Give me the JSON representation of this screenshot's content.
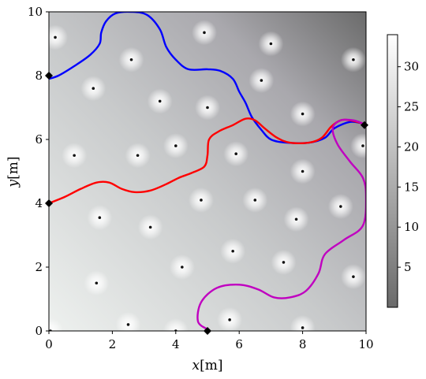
{
  "chart_data": {
    "type": "heatmap",
    "title": "",
    "xlabel": {
      "var": "x",
      "unit": "[m]"
    },
    "ylabel": {
      "var": "y",
      "unit": "[m]"
    },
    "xlim": [
      0,
      10
    ],
    "ylim": [
      0,
      10
    ],
    "x_ticks": [
      "0",
      "2",
      "4",
      "6",
      "8",
      "10"
    ],
    "y_ticks": [
      "0",
      "2",
      "4",
      "6",
      "8",
      "10"
    ],
    "grid": false,
    "colorbar": {
      "range": [
        0,
        34
      ],
      "ticks": [
        "5",
        "10",
        "15",
        "20",
        "25",
        "30"
      ],
      "colormap": "gray",
      "position": "right"
    },
    "obstacles": [
      [
        0.2,
        9.2
      ],
      [
        2.6,
        8.5
      ],
      [
        4.9,
        9.35
      ],
      [
        7.0,
        9.0
      ],
      [
        9.6,
        8.5
      ],
      [
        1.4,
        7.6
      ],
      [
        3.5,
        7.2
      ],
      [
        5.0,
        7.0
      ],
      [
        6.7,
        7.85
      ],
      [
        8.0,
        6.8
      ],
      [
        0.8,
        5.5
      ],
      [
        2.8,
        5.5
      ],
      [
        4.0,
        5.8
      ],
      [
        5.9,
        5.55
      ],
      [
        8.0,
        5.0
      ],
      [
        9.9,
        5.8
      ],
      [
        1.6,
        3.55
      ],
      [
        3.2,
        3.25
      ],
      [
        4.8,
        4.1
      ],
      [
        6.5,
        4.1
      ],
      [
        7.8,
        3.5
      ],
      [
        9.2,
        3.9
      ],
      [
        1.5,
        1.5
      ],
      [
        4.2,
        2.0
      ],
      [
        5.8,
        2.5
      ],
      [
        7.4,
        2.15
      ],
      [
        9.6,
        1.7
      ],
      [
        0.05,
        0.0
      ],
      [
        2.5,
        0.2
      ],
      [
        4.0,
        0.0
      ],
      [
        5.7,
        0.35
      ],
      [
        8.0,
        0.1
      ]
    ],
    "series": [
      {
        "color": "#0000ff",
        "points": [
          [
            0,
            7.9
          ],
          [
            0.3,
            8.0
          ],
          [
            0.8,
            8.3
          ],
          [
            1.3,
            8.65
          ],
          [
            1.6,
            9.0
          ],
          [
            1.65,
            9.35
          ],
          [
            1.8,
            9.7
          ],
          [
            2.1,
            9.95
          ],
          [
            2.6,
            10.0
          ],
          [
            3.1,
            9.9
          ],
          [
            3.5,
            9.45
          ],
          [
            3.7,
            8.9
          ],
          [
            4.0,
            8.5
          ],
          [
            4.4,
            8.2
          ],
          [
            5.0,
            8.2
          ],
          [
            5.4,
            8.15
          ],
          [
            5.8,
            7.9
          ],
          [
            6.0,
            7.5
          ],
          [
            6.2,
            7.15
          ],
          [
            6.4,
            6.7
          ],
          [
            6.7,
            6.3
          ],
          [
            7.0,
            6.0
          ],
          [
            7.5,
            5.9
          ],
          [
            8.2,
            5.9
          ],
          [
            8.7,
            6.05
          ],
          [
            9.0,
            6.35
          ],
          [
            9.5,
            6.55
          ],
          [
            9.9,
            6.5
          ]
        ]
      },
      {
        "color": "#ff0000",
        "points": [
          [
            0,
            4.0
          ],
          [
            0.5,
            4.2
          ],
          [
            1.0,
            4.45
          ],
          [
            1.5,
            4.65
          ],
          [
            1.9,
            4.65
          ],
          [
            2.3,
            4.45
          ],
          [
            2.7,
            4.35
          ],
          [
            3.2,
            4.4
          ],
          [
            3.7,
            4.6
          ],
          [
            4.1,
            4.8
          ],
          [
            4.5,
            4.95
          ],
          [
            4.9,
            5.15
          ],
          [
            5.0,
            5.5
          ],
          [
            5.05,
            6.0
          ],
          [
            5.35,
            6.25
          ],
          [
            5.8,
            6.45
          ],
          [
            6.2,
            6.65
          ],
          [
            6.5,
            6.6
          ],
          [
            6.8,
            6.35
          ],
          [
            7.2,
            6.05
          ],
          [
            7.6,
            5.9
          ],
          [
            8.2,
            5.9
          ],
          [
            8.6,
            6.05
          ],
          [
            8.9,
            6.4
          ],
          [
            9.2,
            6.6
          ],
          [
            9.5,
            6.6
          ],
          [
            9.9,
            6.5
          ]
        ]
      },
      {
        "color": "#c000c0",
        "points": [
          [
            5.0,
            0.05
          ],
          [
            4.7,
            0.3
          ],
          [
            4.8,
            0.9
          ],
          [
            5.3,
            1.35
          ],
          [
            6.0,
            1.45
          ],
          [
            6.6,
            1.3
          ],
          [
            7.1,
            1.05
          ],
          [
            7.6,
            1.05
          ],
          [
            8.1,
            1.25
          ],
          [
            8.5,
            1.8
          ],
          [
            8.7,
            2.4
          ],
          [
            9.3,
            2.85
          ],
          [
            9.9,
            3.3
          ],
          [
            10.0,
            4.2
          ],
          [
            9.9,
            4.8
          ],
          [
            9.5,
            5.3
          ],
          [
            9.1,
            5.85
          ],
          [
            8.95,
            6.35
          ],
          [
            9.2,
            6.6
          ],
          [
            9.6,
            6.6
          ],
          [
            9.9,
            6.5
          ]
        ]
      }
    ],
    "markers": [
      [
        0,
        8.0
      ],
      [
        0,
        4.0
      ],
      [
        5.0,
        0.0
      ],
      [
        9.95,
        6.45
      ]
    ]
  }
}
